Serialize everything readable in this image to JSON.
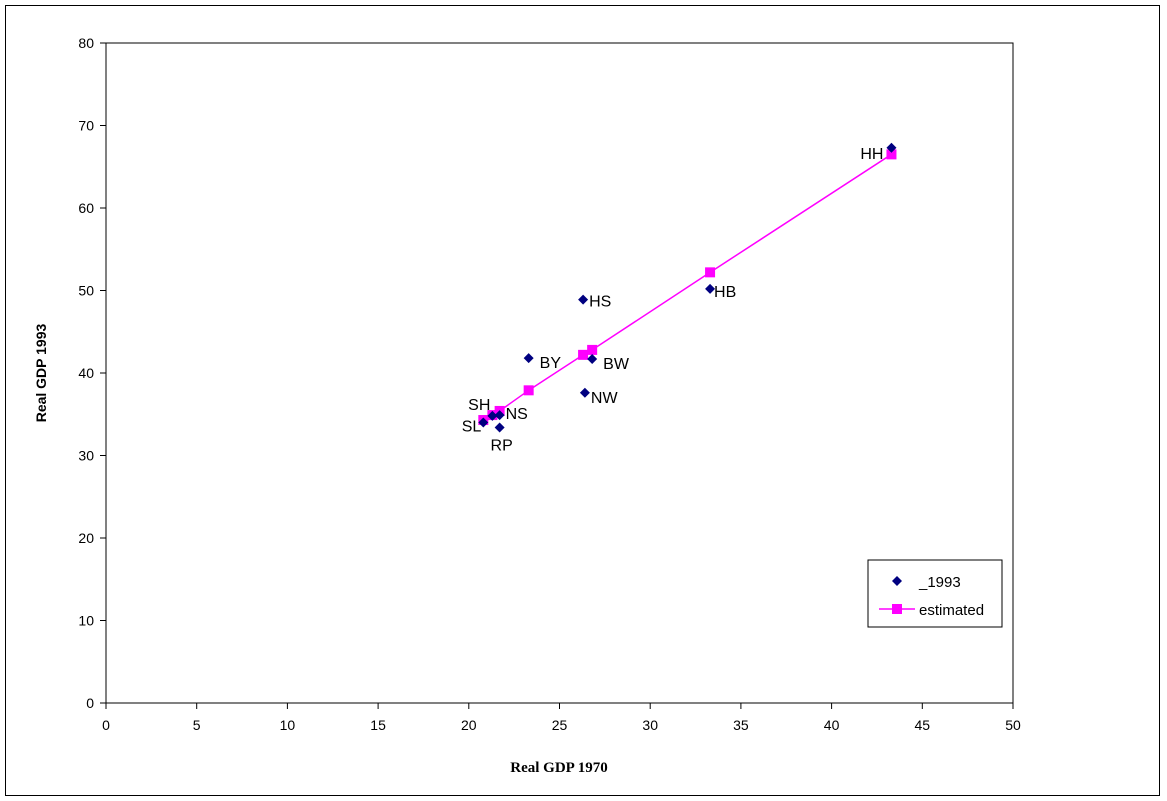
{
  "chart_data": {
    "type": "scatter",
    "xlabel": "Real GDP 1970",
    "ylabel": "Real GDP 1993",
    "xlim": [
      0,
      50
    ],
    "ylim": [
      0,
      80
    ],
    "xticks": [
      0,
      5,
      10,
      15,
      20,
      25,
      30,
      35,
      40,
      45,
      50
    ],
    "yticks": [
      0,
      10,
      20,
      30,
      40,
      50,
      60,
      70,
      80
    ],
    "grid": false,
    "legend_position": "bottom-right",
    "colors": {
      "observed": "#000080",
      "estimated": "#ff00ff"
    },
    "series": [
      {
        "name": "_1993",
        "marker": "diamond",
        "points": [
          {
            "label": "HH",
            "x": 43.3,
            "y": 67.3
          },
          {
            "label": "HB",
            "x": 33.3,
            "y": 50.2
          },
          {
            "label": "HS",
            "x": 26.3,
            "y": 48.9
          },
          {
            "label": "BY",
            "x": 23.3,
            "y": 41.8
          },
          {
            "label": "BW",
            "x": 26.8,
            "y": 41.7
          },
          {
            "label": "NW",
            "x": 26.4,
            "y": 37.6
          },
          {
            "label": "SH",
            "x": 21.3,
            "y": 34.8
          },
          {
            "label": "NS",
            "x": 21.7,
            "y": 34.9
          },
          {
            "label": "SL",
            "x": 20.8,
            "y": 34.0
          },
          {
            "label": "RP",
            "x": 21.7,
            "y": 33.4
          }
        ]
      },
      {
        "name": "estimated",
        "marker": "square",
        "line": true,
        "points": [
          {
            "x": 20.8,
            "y": 34.3
          },
          {
            "x": 21.3,
            "y": 34.9
          },
          {
            "x": 21.7,
            "y": 35.4
          },
          {
            "x": 23.3,
            "y": 37.9
          },
          {
            "x": 26.3,
            "y": 42.2
          },
          {
            "x": 26.8,
            "y": 42.8
          },
          {
            "x": 33.3,
            "y": 52.2
          },
          {
            "x": 43.3,
            "y": 66.5
          }
        ]
      }
    ]
  }
}
